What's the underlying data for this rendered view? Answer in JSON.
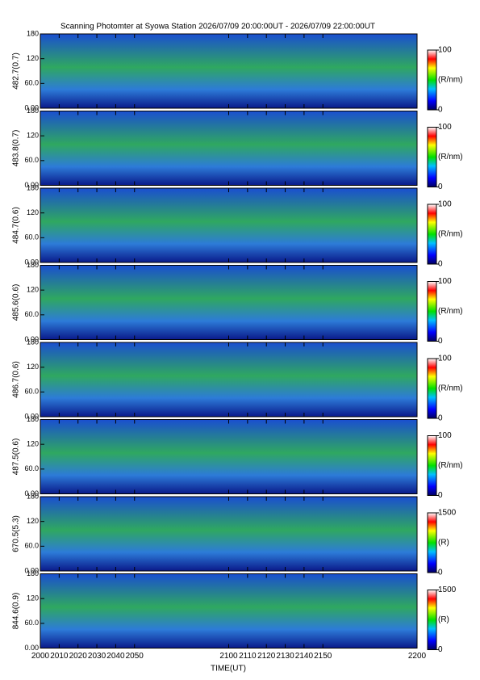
{
  "title": "Scanning Photomter at Syowa Station 2026/07/09 20:00:00UT - 2026/07/09 22:00:00UT",
  "x_label": "TIME(UT)",
  "chart_data": [
    {
      "type": "heatmap",
      "y_label": "482.7(0.7)",
      "xlim": [
        2000,
        2200
      ],
      "xticks": [
        2000,
        2010,
        2020,
        2030,
        2040,
        2050,
        2100,
        2110,
        2120,
        2130,
        2140,
        2150,
        2200
      ],
      "ylim": [
        0,
        180
      ],
      "yticks": [
        {
          "value": 0,
          "label": "0.00"
        },
        {
          "value": 60,
          "label": "60.0"
        },
        120,
        180
      ],
      "clim": [
        0,
        100
      ],
      "cticks": [
        0,
        100
      ],
      "colorbar_label": "(R/nm)"
    },
    {
      "type": "heatmap",
      "y_label": "483.8(0.7)",
      "xlim": [
        2000,
        2200
      ],
      "xticks": [
        2000,
        2010,
        2020,
        2030,
        2040,
        2050,
        2100,
        2110,
        2120,
        2130,
        2140,
        2150,
        2200
      ],
      "ylim": [
        0,
        180
      ],
      "yticks": [
        {
          "value": 0,
          "label": "0.00"
        },
        {
          "value": 60,
          "label": "60.0"
        },
        120,
        180
      ],
      "clim": [
        0,
        100
      ],
      "cticks": [
        0,
        100
      ],
      "colorbar_label": "(R/nm)"
    },
    {
      "type": "heatmap",
      "y_label": "484.7(0.6)",
      "xlim": [
        2000,
        2200
      ],
      "xticks": [
        2000,
        2010,
        2020,
        2030,
        2040,
        2050,
        2100,
        2110,
        2120,
        2130,
        2140,
        2150,
        2200
      ],
      "ylim": [
        0,
        180
      ],
      "yticks": [
        {
          "value": 0,
          "label": "0.00"
        },
        {
          "value": 60,
          "label": "60.0"
        },
        120,
        180
      ],
      "clim": [
        0,
        100
      ],
      "cticks": [
        0,
        100
      ],
      "colorbar_label": "(R/nm)"
    },
    {
      "type": "heatmap",
      "y_label": "485.6(0.6)",
      "xlim": [
        2000,
        2200
      ],
      "xticks": [
        2000,
        2010,
        2020,
        2030,
        2040,
        2050,
        2100,
        2110,
        2120,
        2130,
        2140,
        2150,
        2200
      ],
      "ylim": [
        0,
        180
      ],
      "yticks": [
        {
          "value": 0,
          "label": "0.00"
        },
        {
          "value": 60,
          "label": "60.0"
        },
        120,
        180
      ],
      "clim": [
        0,
        100
      ],
      "cticks": [
        0,
        100
      ],
      "colorbar_label": "(R/nm)"
    },
    {
      "type": "heatmap",
      "y_label": "486.7(0.6)",
      "xlim": [
        2000,
        2200
      ],
      "xticks": [
        2000,
        2010,
        2020,
        2030,
        2040,
        2050,
        2100,
        2110,
        2120,
        2130,
        2140,
        2150,
        2200
      ],
      "ylim": [
        0,
        180
      ],
      "yticks": [
        {
          "value": 0,
          "label": "0.00"
        },
        {
          "value": 60,
          "label": "60.0"
        },
        120,
        180
      ],
      "clim": [
        0,
        100
      ],
      "cticks": [
        0,
        100
      ],
      "colorbar_label": "(R/nm)"
    },
    {
      "type": "heatmap",
      "y_label": "487.5(0.6)",
      "xlim": [
        2000,
        2200
      ],
      "xticks": [
        2000,
        2010,
        2020,
        2030,
        2040,
        2050,
        2100,
        2110,
        2120,
        2130,
        2140,
        2150,
        2200
      ],
      "ylim": [
        0,
        180
      ],
      "yticks": [
        {
          "value": 0,
          "label": "0.00"
        },
        {
          "value": 60,
          "label": "60.0"
        },
        120,
        180
      ],
      "clim": [
        0,
        100
      ],
      "cticks": [
        0,
        100
      ],
      "colorbar_label": "(R/nm)"
    },
    {
      "type": "heatmap",
      "y_label": "670.5(5.3)",
      "xlim": [
        2000,
        2200
      ],
      "xticks": [
        2000,
        2010,
        2020,
        2030,
        2040,
        2050,
        2100,
        2110,
        2120,
        2130,
        2140,
        2150,
        2200
      ],
      "ylim": [
        0,
        180
      ],
      "yticks": [
        {
          "value": 0,
          "label": "0.00"
        },
        {
          "value": 60,
          "label": "60.0"
        },
        120,
        180
      ],
      "clim": [
        0,
        1500
      ],
      "cticks": [
        0,
        1500
      ],
      "colorbar_label": "(R)"
    },
    {
      "type": "heatmap",
      "y_label": "844.6(0.9)",
      "xlim": [
        2000,
        2200
      ],
      "xticks": [
        2000,
        2010,
        2020,
        2030,
        2040,
        2050,
        2100,
        2110,
        2120,
        2130,
        2140,
        2150,
        2200
      ],
      "ylim": [
        0,
        180
      ],
      "yticks": [
        {
          "value": 0,
          "label": "0.00"
        },
        {
          "value": 60,
          "label": "60.0"
        },
        120,
        180
      ],
      "clim": [
        0,
        1500
      ],
      "cticks": [
        0,
        1500
      ],
      "colorbar_label": "(R)"
    }
  ]
}
